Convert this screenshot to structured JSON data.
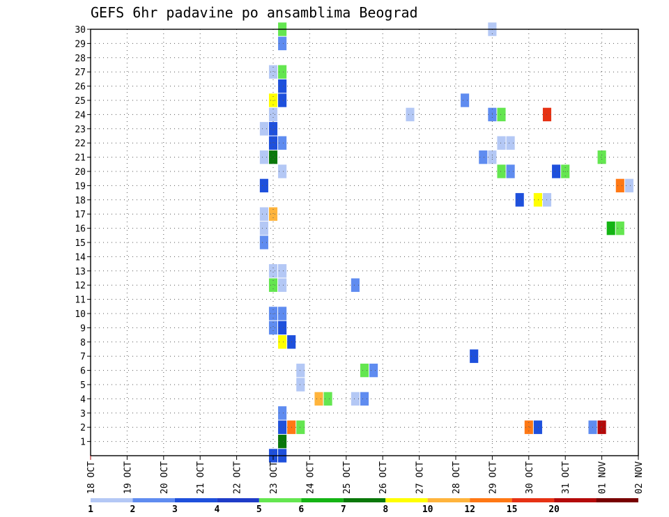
{
  "chart_data": {
    "type": "heatmap",
    "title": "GEFS 6hr padavine po ansamblima Beograd",
    "x_tick_labels": [
      "18 OCT",
      "19 OCT",
      "20 OCT",
      "21 OCT",
      "22 OCT",
      "23 OCT",
      "24 OCT",
      "25 OCT",
      "26 OCT",
      "27 OCT",
      "28 OCT",
      "29 OCT",
      "30 OCT",
      "31 OCT",
      "01 NOV",
      "02 NOV"
    ],
    "y_tick_labels": [
      "1",
      "2",
      "3",
      "4",
      "5",
      "6",
      "7",
      "8",
      "9",
      "10",
      "11",
      "12",
      "13",
      "14",
      "15",
      "16",
      "17",
      "18",
      "19",
      "20",
      "21",
      "22",
      "23",
      "24",
      "25",
      "26",
      "27",
      "28",
      "29",
      "30"
    ],
    "xlim": [
      0,
      60
    ],
    "ylim": [
      0,
      30
    ],
    "grid": true,
    "x_unit": "6-hour steps from 18 OCT 00Z",
    "levels": [
      1,
      2,
      3,
      4,
      5,
      6,
      7,
      8,
      10,
      12,
      15,
      20
    ],
    "level_labels": [
      "1",
      "2",
      "3",
      "4",
      "5",
      "6",
      "7",
      "8",
      "10",
      "12",
      "15",
      "20"
    ],
    "level_colors": [
      "#b4c8f5",
      "#5f8cf0",
      "#1e50dc",
      "#1e3cc8",
      "#64e650",
      "#14b414",
      "#0a780a",
      "#ffff00",
      "#ffb43c",
      "#ff7814",
      "#e63214",
      "#b40a0a",
      "#780000"
    ],
    "cells": [
      {
        "step": 21,
        "member": 30,
        "level": 4
      },
      {
        "step": 44,
        "member": 30,
        "level": 0
      },
      {
        "step": 21,
        "member": 29,
        "level": 1
      },
      {
        "step": 20,
        "member": 27,
        "level": 0
      },
      {
        "step": 21,
        "member": 27,
        "level": 4
      },
      {
        "step": 21,
        "member": 26,
        "level": 2
      },
      {
        "step": 20,
        "member": 25,
        "level": 7
      },
      {
        "step": 21,
        "member": 25,
        "level": 2
      },
      {
        "step": 41,
        "member": 25,
        "level": 1
      },
      {
        "step": 20,
        "member": 24,
        "level": 0
      },
      {
        "step": 35,
        "member": 24,
        "level": 0
      },
      {
        "step": 44,
        "member": 24,
        "level": 1
      },
      {
        "step": 45,
        "member": 24,
        "level": 4
      },
      {
        "step": 50,
        "member": 24,
        "level": 10
      },
      {
        "step": 19,
        "member": 23,
        "level": 0
      },
      {
        "step": 20,
        "member": 23,
        "level": 2
      },
      {
        "step": 20,
        "member": 22,
        "level": 2
      },
      {
        "step": 21,
        "member": 22,
        "level": 1
      },
      {
        "step": 45,
        "member": 22,
        "level": 0
      },
      {
        "step": 46,
        "member": 22,
        "level": 0
      },
      {
        "step": 19,
        "member": 21,
        "level": 0
      },
      {
        "step": 20,
        "member": 21,
        "level": 6
      },
      {
        "step": 43,
        "member": 21,
        "level": 1
      },
      {
        "step": 44,
        "member": 21,
        "level": 0
      },
      {
        "step": 56,
        "member": 21,
        "level": 4
      },
      {
        "step": 21,
        "member": 20,
        "level": 0
      },
      {
        "step": 45,
        "member": 20,
        "level": 4
      },
      {
        "step": 46,
        "member": 20,
        "level": 1
      },
      {
        "step": 51,
        "member": 20,
        "level": 2
      },
      {
        "step": 52,
        "member": 20,
        "level": 4
      },
      {
        "step": 19,
        "member": 19,
        "level": 2
      },
      {
        "step": 58,
        "member": 19,
        "level": 9
      },
      {
        "step": 59,
        "member": 19,
        "level": 0
      },
      {
        "step": 47,
        "member": 18,
        "level": 2
      },
      {
        "step": 49,
        "member": 18,
        "level": 7
      },
      {
        "step": 50,
        "member": 18,
        "level": 0
      },
      {
        "step": 19,
        "member": 17,
        "level": 0
      },
      {
        "step": 20,
        "member": 17,
        "level": 8
      },
      {
        "step": 19,
        "member": 16,
        "level": 0
      },
      {
        "step": 57,
        "member": 16,
        "level": 5
      },
      {
        "step": 58,
        "member": 16,
        "level": 4
      },
      {
        "step": 19,
        "member": 15,
        "level": 1
      },
      {
        "step": 20,
        "member": 13,
        "level": 0
      },
      {
        "step": 21,
        "member": 13,
        "level": 0
      },
      {
        "step": 20,
        "member": 12,
        "level": 4
      },
      {
        "step": 21,
        "member": 12,
        "level": 0
      },
      {
        "step": 29,
        "member": 12,
        "level": 1
      },
      {
        "step": 20,
        "member": 10,
        "level": 1
      },
      {
        "step": 21,
        "member": 10,
        "level": 1
      },
      {
        "step": 20,
        "member": 9,
        "level": 1
      },
      {
        "step": 21,
        "member": 9,
        "level": 2
      },
      {
        "step": 21,
        "member": 8,
        "level": 7
      },
      {
        "step": 22,
        "member": 8,
        "level": 2
      },
      {
        "step": 42,
        "member": 7,
        "level": 2
      },
      {
        "step": 23,
        "member": 6,
        "level": 0
      },
      {
        "step": 30,
        "member": 6,
        "level": 4
      },
      {
        "step": 31,
        "member": 6,
        "level": 1
      },
      {
        "step": 23,
        "member": 5,
        "level": 0
      },
      {
        "step": 25,
        "member": 4,
        "level": 8
      },
      {
        "step": 26,
        "member": 4,
        "level": 4
      },
      {
        "step": 29,
        "member": 4,
        "level": 0
      },
      {
        "step": 30,
        "member": 4,
        "level": 1
      },
      {
        "step": 21,
        "member": 3,
        "level": 1
      },
      {
        "step": 21,
        "member": 2,
        "level": 2
      },
      {
        "step": 22,
        "member": 2,
        "level": 9
      },
      {
        "step": 23,
        "member": 2,
        "level": 4
      },
      {
        "step": 48,
        "member": 2,
        "level": 9
      },
      {
        "step": 49,
        "member": 2,
        "level": 2
      },
      {
        "step": 55,
        "member": 2,
        "level": 1
      },
      {
        "step": 56,
        "member": 2,
        "level": 11
      },
      {
        "step": 21,
        "member": 1,
        "level": 6
      },
      {
        "step": 20,
        "member": 0,
        "level": 2
      },
      {
        "step": 21,
        "member": 0,
        "level": 2
      }
    ]
  }
}
